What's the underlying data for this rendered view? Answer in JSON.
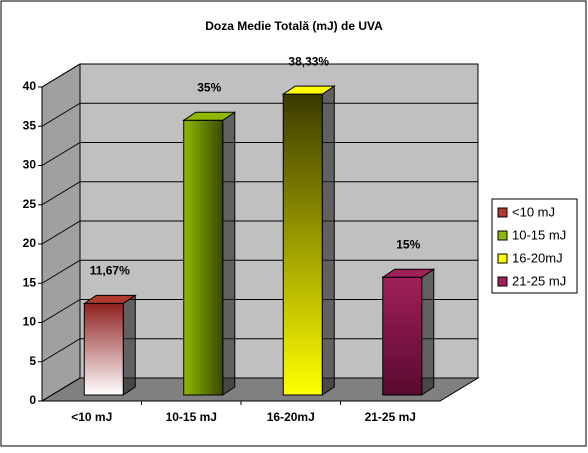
{
  "chart_data": {
    "type": "bar3d",
    "title": "Doza Medie Totală (mJ) de UVA",
    "categories": [
      "<10 mJ",
      "10-15 mJ",
      "16-20mJ",
      "21-25 mJ"
    ],
    "values": [
      11.67,
      35,
      38.33,
      15
    ],
    "value_labels": [
      "11,67%",
      "35%",
      "38,33%",
      "15%"
    ],
    "colors": [
      "#b03a2e",
      "#8fb800",
      "#ffff00",
      "#a0205a"
    ],
    "ylim": [
      0,
      40
    ],
    "yticks": [
      0,
      5,
      10,
      15,
      20,
      25,
      30,
      35,
      40
    ],
    "grid": true,
    "legend": "right"
  }
}
